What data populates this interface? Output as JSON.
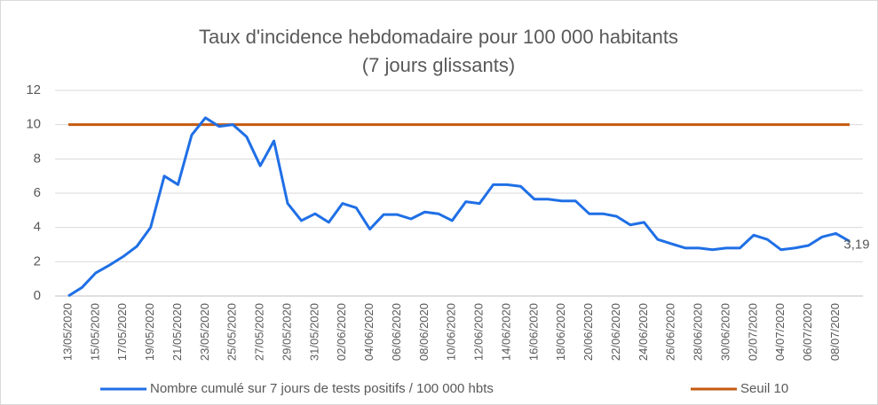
{
  "chart_data": {
    "type": "line",
    "title": "Taux d'incidence hebdomadaire pour 100 000 habitants (7 jours glissants)",
    "categories": [
      "13/05/2020",
      null,
      "15/05/2020",
      null,
      "17/05/2020",
      null,
      "19/05/2020",
      null,
      "21/05/2020",
      null,
      "23/05/2020",
      null,
      "25/05/2020",
      null,
      "27/05/2020",
      null,
      "29/05/2020",
      null,
      "31/05/2020",
      null,
      "02/06/2020",
      null,
      "04/06/2020",
      null,
      "06/06/2020",
      null,
      "08/06/2020",
      null,
      "10/06/2020",
      null,
      "12/06/2020",
      null,
      "14/06/2020",
      null,
      "16/06/2020",
      null,
      "18/06/2020",
      null,
      "20/06/2020",
      null,
      "22/06/2020",
      null,
      "24/06/2020",
      null,
      "26/06/2020",
      null,
      "28/06/2020",
      null,
      "30/06/2020",
      null,
      "02/07/2020",
      null,
      "04/07/2020",
      null,
      "06/07/2020",
      null,
      "08/07/2020",
      null
    ],
    "series": [
      {
        "name": "Nombre cumulé sur 7 jours de tests positifs / 100 000 hbts",
        "color": "#1f6fe6",
        "values": [
          0,
          0.5,
          1.35,
          1.8,
          2.3,
          2.9,
          4.0,
          7.0,
          6.5,
          9.4,
          10.4,
          9.9,
          10.0,
          9.3,
          7.6,
          9.05,
          5.4,
          4.4,
          4.8,
          4.3,
          5.4,
          5.15,
          3.9,
          4.75,
          4.75,
          4.5,
          4.9,
          4.8,
          4.4,
          5.5,
          5.4,
          6.5,
          6.5,
          6.4,
          5.65,
          5.65,
          5.55,
          5.55,
          4.8,
          4.8,
          4.65,
          4.15,
          4.3,
          3.3,
          3.05,
          2.8,
          2.8,
          2.7,
          2.8,
          2.8,
          3.55,
          3.3,
          2.7,
          2.8,
          2.95,
          3.45,
          3.65,
          3.19
        ],
        "value_labels": [
          null,
          null,
          null,
          null,
          null,
          null,
          null,
          null,
          null,
          null,
          null,
          null,
          null,
          null,
          null,
          null,
          null,
          null,
          null,
          null,
          null,
          null,
          null,
          null,
          null,
          null,
          null,
          null,
          null,
          null,
          null,
          null,
          null,
          null,
          null,
          null,
          null,
          null,
          null,
          null,
          null,
          null,
          null,
          null,
          null,
          null,
          null,
          null,
          null,
          null,
          null,
          null,
          null,
          null,
          null,
          null,
          null,
          "3,19"
        ]
      },
      {
        "name": "Seuil 10",
        "color": "#c55a11",
        "values": [
          10,
          10,
          10,
          10,
          10,
          10,
          10,
          10,
          10,
          10,
          10,
          10,
          10,
          10,
          10,
          10,
          10,
          10,
          10,
          10,
          10,
          10,
          10,
          10,
          10,
          10,
          10,
          10,
          10,
          10,
          10,
          10,
          10,
          10,
          10,
          10,
          10,
          10,
          10,
          10,
          10,
          10,
          10,
          10,
          10,
          10,
          10,
          10,
          10,
          10,
          10,
          10,
          10,
          10,
          10,
          10,
          10,
          10
        ]
      }
    ],
    "ylim": [
      0,
      12
    ],
    "yticks": [
      0,
      2,
      4,
      6,
      8,
      10,
      12
    ],
    "grid": true,
    "legend": "bottom"
  }
}
